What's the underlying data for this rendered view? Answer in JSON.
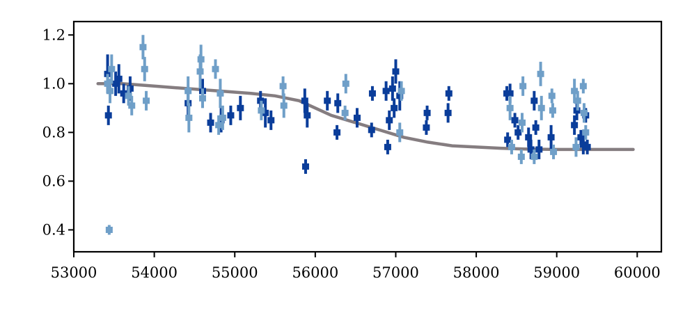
{
  "chart_data": {
    "type": "scatter",
    "title": "",
    "xlabel": "",
    "ylabel": "",
    "xlim": [
      53000,
      60300
    ],
    "ylim": [
      0.31,
      1.255
    ],
    "grid": false,
    "xticks": [
      53000,
      54000,
      55000,
      56000,
      57000,
      58000,
      59000,
      60000
    ],
    "xtick_labels": [
      "53000",
      "54000",
      "55000",
      "56000",
      "57000",
      "58000",
      "59000",
      "60000"
    ],
    "yticks": [
      0.4,
      0.6,
      0.8,
      1.0,
      1.2
    ],
    "ytick_labels": [
      "0.4",
      "0.6",
      "0.8",
      "1.0",
      "1.2"
    ],
    "colors": {
      "series_dark": "#0a3d9a",
      "series_light": "#6f9fc8",
      "model": "#857d80",
      "axes": "#000000"
    },
    "series": [
      {
        "color_key": "series_dark",
        "points": [
          {
            "x": 53420,
            "y": 1.04,
            "e": 0.08
          },
          {
            "x": 53430,
            "y": 0.87,
            "e": 0.04
          },
          {
            "x": 53520,
            "y": 1.0,
            "e": 0.05
          },
          {
            "x": 53560,
            "y": 1.02,
            "e": 0.06
          },
          {
            "x": 53620,
            "y": 0.96,
            "e": 0.04
          },
          {
            "x": 53700,
            "y": 0.98,
            "e": 0.05
          },
          {
            "x": 54420,
            "y": 0.92,
            "e": 0.05
          },
          {
            "x": 54600,
            "y": 0.97,
            "e": 0.05
          },
          {
            "x": 54700,
            "y": 0.84,
            "e": 0.04
          },
          {
            "x": 54830,
            "y": 0.85,
            "e": 0.05
          },
          {
            "x": 54950,
            "y": 0.87,
            "e": 0.04
          },
          {
            "x": 55070,
            "y": 0.9,
            "e": 0.05
          },
          {
            "x": 55320,
            "y": 0.93,
            "e": 0.04
          },
          {
            "x": 55380,
            "y": 0.88,
            "e": 0.06
          },
          {
            "x": 55450,
            "y": 0.85,
            "e": 0.04
          },
          {
            "x": 55870,
            "y": 0.93,
            "e": 0.05
          },
          {
            "x": 55880,
            "y": 0.66,
            "e": 0.03
          },
          {
            "x": 55900,
            "y": 0.87,
            "e": 0.05
          },
          {
            "x": 56150,
            "y": 0.93,
            "e": 0.04
          },
          {
            "x": 56270,
            "y": 0.8,
            "e": 0.03
          },
          {
            "x": 56280,
            "y": 0.92,
            "e": 0.04
          },
          {
            "x": 56520,
            "y": 0.86,
            "e": 0.04
          },
          {
            "x": 56700,
            "y": 0.81,
            "e": 0.03
          },
          {
            "x": 56710,
            "y": 0.96,
            "e": 0.03
          },
          {
            "x": 56880,
            "y": 0.97,
            "e": 0.04
          },
          {
            "x": 56900,
            "y": 0.74,
            "e": 0.03
          },
          {
            "x": 56920,
            "y": 0.85,
            "e": 0.04
          },
          {
            "x": 56960,
            "y": 0.98,
            "e": 0.05
          },
          {
            "x": 56980,
            "y": 0.9,
            "e": 0.04
          },
          {
            "x": 57000,
            "y": 1.05,
            "e": 0.05
          },
          {
            "x": 57050,
            "y": 0.95,
            "e": 0.06
          },
          {
            "x": 57380,
            "y": 0.82,
            "e": 0.03
          },
          {
            "x": 57390,
            "y": 0.88,
            "e": 0.03
          },
          {
            "x": 57650,
            "y": 0.88,
            "e": 0.04
          },
          {
            "x": 57660,
            "y": 0.96,
            "e": 0.03
          },
          {
            "x": 58380,
            "y": 0.96,
            "e": 0.03
          },
          {
            "x": 58390,
            "y": 0.77,
            "e": 0.03
          },
          {
            "x": 58420,
            "y": 0.96,
            "e": 0.04
          },
          {
            "x": 58480,
            "y": 0.85,
            "e": 0.03
          },
          {
            "x": 58520,
            "y": 0.8,
            "e": 0.03
          },
          {
            "x": 58650,
            "y": 0.78,
            "e": 0.04
          },
          {
            "x": 58680,
            "y": 0.73,
            "e": 0.04
          },
          {
            "x": 58720,
            "y": 0.93,
            "e": 0.04
          },
          {
            "x": 58740,
            "y": 0.82,
            "e": 0.03
          },
          {
            "x": 58780,
            "y": 0.73,
            "e": 0.04
          },
          {
            "x": 58930,
            "y": 0.78,
            "e": 0.05
          },
          {
            "x": 59220,
            "y": 0.83,
            "e": 0.04
          },
          {
            "x": 59250,
            "y": 0.89,
            "e": 0.04
          },
          {
            "x": 59300,
            "y": 0.78,
            "e": 0.03
          },
          {
            "x": 59330,
            "y": 0.75,
            "e": 0.04
          },
          {
            "x": 59360,
            "y": 0.87,
            "e": 0.03
          },
          {
            "x": 59380,
            "y": 0.74,
            "e": 0.03
          }
        ]
      },
      {
        "color_key": "series_light",
        "points": [
          {
            "x": 53420,
            "y": 1.0,
            "e": 0.04
          },
          {
            "x": 53440,
            "y": 0.4,
            "e": 0.02
          },
          {
            "x": 53450,
            "y": 0.97,
            "e": 0.05
          },
          {
            "x": 53470,
            "y": 1.06,
            "e": 0.06
          },
          {
            "x": 53680,
            "y": 0.95,
            "e": 0.04
          },
          {
            "x": 53720,
            "y": 0.91,
            "e": 0.04
          },
          {
            "x": 53860,
            "y": 1.15,
            "e": 0.05
          },
          {
            "x": 53880,
            "y": 1.06,
            "e": 0.05
          },
          {
            "x": 53900,
            "y": 0.93,
            "e": 0.04
          },
          {
            "x": 54420,
            "y": 0.97,
            "e": 0.06
          },
          {
            "x": 54430,
            "y": 0.86,
            "e": 0.06
          },
          {
            "x": 54570,
            "y": 1.05,
            "e": 0.07
          },
          {
            "x": 54580,
            "y": 1.1,
            "e": 0.06
          },
          {
            "x": 54600,
            "y": 0.94,
            "e": 0.04
          },
          {
            "x": 54760,
            "y": 1.06,
            "e": 0.04
          },
          {
            "x": 54800,
            "y": 0.83,
            "e": 0.04
          },
          {
            "x": 54820,
            "y": 0.96,
            "e": 0.06
          },
          {
            "x": 54850,
            "y": 0.86,
            "e": 0.05
          },
          {
            "x": 55330,
            "y": 0.89,
            "e": 0.04
          },
          {
            "x": 55600,
            "y": 0.99,
            "e": 0.04
          },
          {
            "x": 55610,
            "y": 0.91,
            "e": 0.05
          },
          {
            "x": 56370,
            "y": 0.88,
            "e": 0.03
          },
          {
            "x": 56380,
            "y": 1.0,
            "e": 0.04
          },
          {
            "x": 57050,
            "y": 0.8,
            "e": 0.04
          },
          {
            "x": 57070,
            "y": 0.97,
            "e": 0.04
          },
          {
            "x": 58420,
            "y": 0.9,
            "e": 0.05
          },
          {
            "x": 58440,
            "y": 0.74,
            "e": 0.03
          },
          {
            "x": 58560,
            "y": 0.7,
            "e": 0.03
          },
          {
            "x": 58570,
            "y": 0.84,
            "e": 0.04
          },
          {
            "x": 58580,
            "y": 0.99,
            "e": 0.04
          },
          {
            "x": 58720,
            "y": 0.7,
            "e": 0.03
          },
          {
            "x": 58800,
            "y": 1.04,
            "e": 0.05
          },
          {
            "x": 58810,
            "y": 0.9,
            "e": 0.05
          },
          {
            "x": 58940,
            "y": 0.95,
            "e": 0.03
          },
          {
            "x": 58950,
            "y": 0.89,
            "e": 0.03
          },
          {
            "x": 58960,
            "y": 0.72,
            "e": 0.03
          },
          {
            "x": 59220,
            "y": 0.97,
            "e": 0.05
          },
          {
            "x": 59240,
            "y": 0.74,
            "e": 0.04
          },
          {
            "x": 59260,
            "y": 0.93,
            "e": 0.04
          },
          {
            "x": 59330,
            "y": 0.99,
            "e": 0.03
          },
          {
            "x": 59340,
            "y": 0.88,
            "e": 0.04
          },
          {
            "x": 59360,
            "y": 0.8,
            "e": 0.03
          }
        ]
      },
      {
        "color_key": "model",
        "type": "line",
        "x": [
          53300,
          53600,
          54000,
          54400,
          54800,
          55200,
          55500,
          55800,
          56000,
          56200,
          56500,
          56800,
          57100,
          57400,
          57700,
          58000,
          58300,
          58600,
          59000,
          59500,
          59950
        ],
        "y": [
          1.0,
          1.0,
          0.99,
          0.98,
          0.97,
          0.96,
          0.95,
          0.93,
          0.9,
          0.87,
          0.84,
          0.81,
          0.78,
          0.76,
          0.745,
          0.74,
          0.735,
          0.732,
          0.73,
          0.73,
          0.73
        ]
      }
    ]
  }
}
